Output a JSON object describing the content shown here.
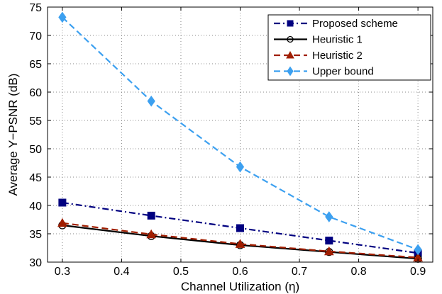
{
  "chart_data": {
    "type": "line",
    "title": "",
    "xlabel": "Channel Utilization (η)",
    "ylabel": "Average Y−PSNR (dB)",
    "xlim": [
      0.275,
      0.925
    ],
    "ylim": [
      30,
      75
    ],
    "xticks": [
      0.3,
      0.4,
      0.5,
      0.6,
      0.7,
      0.8,
      0.9
    ],
    "yticks": [
      30,
      35,
      40,
      45,
      50,
      55,
      60,
      65,
      70,
      75
    ],
    "xtick_labels": [
      "0.3",
      "0.4",
      "0.5",
      "0.6",
      "0.7",
      "0.8",
      "0.9"
    ],
    "ytick_labels": [
      "30",
      "35",
      "40",
      "45",
      "50",
      "55",
      "60",
      "65",
      "70",
      "75"
    ],
    "grid": true,
    "legend_position": "top-right",
    "x": [
      0.3,
      0.45,
      0.6,
      0.75,
      0.9
    ],
    "series": [
      {
        "name": "Proposed scheme",
        "values": [
          40.5,
          38.2,
          36.0,
          33.8,
          31.6
        ],
        "color": "#000080",
        "marker": "square",
        "dash": "dashdot"
      },
      {
        "name": "Heuristic 1",
        "values": [
          36.5,
          34.6,
          33.0,
          31.8,
          30.6
        ],
        "color": "#000000",
        "marker": "circle",
        "dash": "solid"
      },
      {
        "name": "Heuristic 2",
        "values": [
          36.9,
          34.9,
          33.2,
          31.9,
          30.8
        ],
        "color": "#a01e00",
        "marker": "triangle",
        "dash": "dashed"
      },
      {
        "name": "Upper bound",
        "values": [
          73.2,
          58.4,
          46.8,
          38.0,
          32.2
        ],
        "color": "#3ca0f0",
        "marker": "diamond",
        "dash": "dashed"
      }
    ]
  }
}
